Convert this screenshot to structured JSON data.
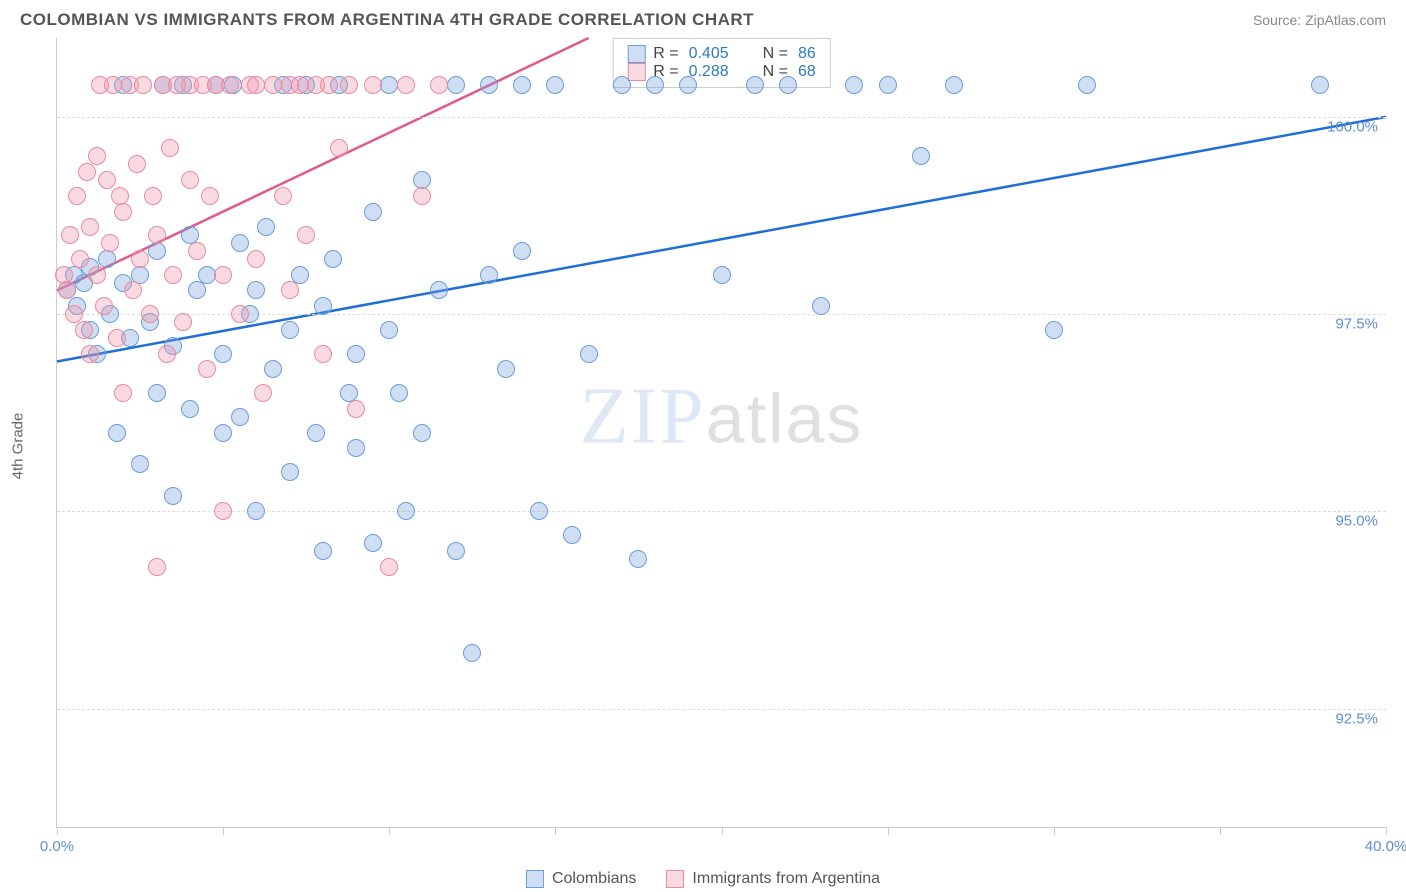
{
  "title": "COLOMBIAN VS IMMIGRANTS FROM ARGENTINA 4TH GRADE CORRELATION CHART",
  "source": "Source: ZipAtlas.com",
  "y_axis_label": "4th Grade",
  "watermark_a": "ZIP",
  "watermark_b": "atlas",
  "chart": {
    "type": "scatter",
    "xlim": [
      0,
      40
    ],
    "ylim": [
      91,
      101
    ],
    "x_ticks": [
      0,
      5,
      10,
      15,
      20,
      25,
      30,
      35,
      40
    ],
    "x_tick_labels": [
      "0.0%",
      "",
      "",
      "",
      "",
      "",
      "",
      "",
      "40.0%"
    ],
    "y_ticks": [
      92.5,
      95.0,
      97.5,
      100.0
    ],
    "y_tick_labels": [
      "92.5%",
      "95.0%",
      "97.5%",
      "100.0%"
    ],
    "grid_color": "#dddddd",
    "background_color": "#ffffff",
    "series": [
      {
        "name": "Colombians",
        "color_fill": "rgba(120,160,220,0.35)",
        "color_stroke": "#6a9edb",
        "trend_color": "#1f6fd4",
        "trend": {
          "x1": 0,
          "y1": 96.9,
          "x2": 40,
          "y2": 100.0
        },
        "R": "0.405",
        "N": "86",
        "points": [
          [
            0.3,
            97.8
          ],
          [
            0.5,
            98.0
          ],
          [
            0.6,
            97.6
          ],
          [
            0.8,
            97.9
          ],
          [
            1.0,
            98.1
          ],
          [
            1.0,
            97.3
          ],
          [
            1.2,
            97.0
          ],
          [
            1.5,
            98.2
          ],
          [
            1.6,
            97.5
          ],
          [
            1.8,
            96.0
          ],
          [
            2.0,
            97.9
          ],
          [
            2.0,
            100.4
          ],
          [
            2.2,
            97.2
          ],
          [
            2.5,
            98.0
          ],
          [
            2.5,
            95.6
          ],
          [
            2.8,
            97.4
          ],
          [
            3.0,
            98.3
          ],
          [
            3.0,
            96.5
          ],
          [
            3.2,
            100.4
          ],
          [
            3.5,
            97.1
          ],
          [
            3.5,
            95.2
          ],
          [
            3.8,
            100.4
          ],
          [
            4.0,
            98.5
          ],
          [
            4.0,
            96.3
          ],
          [
            4.2,
            97.8
          ],
          [
            4.5,
            98.0
          ],
          [
            4.8,
            100.4
          ],
          [
            5.0,
            97.0
          ],
          [
            5.0,
            96.0
          ],
          [
            5.3,
            100.4
          ],
          [
            5.5,
            98.4
          ],
          [
            5.5,
            96.2
          ],
          [
            5.8,
            97.5
          ],
          [
            6.0,
            97.8
          ],
          [
            6.0,
            95.0
          ],
          [
            6.3,
            98.6
          ],
          [
            6.5,
            96.8
          ],
          [
            6.8,
            100.4
          ],
          [
            7.0,
            97.3
          ],
          [
            7.0,
            95.5
          ],
          [
            7.3,
            98.0
          ],
          [
            7.5,
            100.4
          ],
          [
            7.8,
            96.0
          ],
          [
            8.0,
            97.6
          ],
          [
            8.0,
            94.5
          ],
          [
            8.3,
            98.2
          ],
          [
            8.5,
            100.4
          ],
          [
            8.8,
            96.5
          ],
          [
            9.0,
            97.0
          ],
          [
            9.0,
            95.8
          ],
          [
            9.5,
            98.8
          ],
          [
            9.5,
            94.6
          ],
          [
            10.0,
            100.4
          ],
          [
            10.0,
            97.3
          ],
          [
            10.3,
            96.5
          ],
          [
            10.5,
            95.0
          ],
          [
            11.0,
            99.2
          ],
          [
            11.0,
            96.0
          ],
          [
            11.5,
            97.8
          ],
          [
            12.0,
            100.4
          ],
          [
            12.0,
            94.5
          ],
          [
            12.5,
            93.2
          ],
          [
            13.0,
            98.0
          ],
          [
            13.0,
            100.4
          ],
          [
            13.5,
            96.8
          ],
          [
            14.0,
            100.4
          ],
          [
            14.0,
            98.3
          ],
          [
            14.5,
            95.0
          ],
          [
            15.0,
            100.4
          ],
          [
            15.5,
            94.7
          ],
          [
            16.0,
            97.0
          ],
          [
            17.0,
            100.4
          ],
          [
            17.5,
            94.4
          ],
          [
            18.0,
            100.4
          ],
          [
            19.0,
            100.4
          ],
          [
            20.0,
            98.0
          ],
          [
            21.0,
            100.4
          ],
          [
            22.0,
            100.4
          ],
          [
            23.0,
            97.6
          ],
          [
            24.0,
            100.4
          ],
          [
            25.0,
            100.4
          ],
          [
            26.0,
            99.5
          ],
          [
            27.0,
            100.4
          ],
          [
            30.0,
            97.3
          ],
          [
            31.0,
            100.4
          ],
          [
            38.0,
            100.4
          ]
        ]
      },
      {
        "name": "Immigrants from Argentina",
        "color_fill": "rgba(240,150,170,0.35)",
        "color_stroke": "#e88aa0",
        "trend_color": "#e05a8c",
        "trend": {
          "x1": 0,
          "y1": 97.8,
          "x2": 16,
          "y2": 101.0
        },
        "R": "0.288",
        "N": "68",
        "points": [
          [
            0.2,
            98.0
          ],
          [
            0.3,
            97.8
          ],
          [
            0.4,
            98.5
          ],
          [
            0.5,
            97.5
          ],
          [
            0.6,
            99.0
          ],
          [
            0.7,
            98.2
          ],
          [
            0.8,
            97.3
          ],
          [
            0.9,
            99.3
          ],
          [
            1.0,
            98.6
          ],
          [
            1.0,
            97.0
          ],
          [
            1.2,
            99.5
          ],
          [
            1.2,
            98.0
          ],
          [
            1.3,
            100.4
          ],
          [
            1.4,
            97.6
          ],
          [
            1.5,
            99.2
          ],
          [
            1.6,
            98.4
          ],
          [
            1.7,
            100.4
          ],
          [
            1.8,
            97.2
          ],
          [
            1.9,
            99.0
          ],
          [
            2.0,
            98.8
          ],
          [
            2.0,
            96.5
          ],
          [
            2.2,
            100.4
          ],
          [
            2.3,
            97.8
          ],
          [
            2.4,
            99.4
          ],
          [
            2.5,
            98.2
          ],
          [
            2.6,
            100.4
          ],
          [
            2.8,
            97.5
          ],
          [
            2.9,
            99.0
          ],
          [
            3.0,
            94.3
          ],
          [
            3.0,
            98.5
          ],
          [
            3.2,
            100.4
          ],
          [
            3.3,
            97.0
          ],
          [
            3.4,
            99.6
          ],
          [
            3.5,
            98.0
          ],
          [
            3.6,
            100.4
          ],
          [
            3.8,
            97.4
          ],
          [
            4.0,
            99.2
          ],
          [
            4.0,
            100.4
          ],
          [
            4.2,
            98.3
          ],
          [
            4.4,
            100.4
          ],
          [
            4.5,
            96.8
          ],
          [
            4.6,
            99.0
          ],
          [
            4.8,
            100.4
          ],
          [
            5.0,
            98.0
          ],
          [
            5.0,
            95.0
          ],
          [
            5.2,
            100.4
          ],
          [
            5.5,
            97.5
          ],
          [
            5.8,
            100.4
          ],
          [
            6.0,
            98.2
          ],
          [
            6.0,
            100.4
          ],
          [
            6.2,
            96.5
          ],
          [
            6.5,
            100.4
          ],
          [
            6.8,
            99.0
          ],
          [
            7.0,
            100.4
          ],
          [
            7.0,
            97.8
          ],
          [
            7.3,
            100.4
          ],
          [
            7.5,
            98.5
          ],
          [
            7.8,
            100.4
          ],
          [
            8.0,
            97.0
          ],
          [
            8.2,
            100.4
          ],
          [
            8.5,
            99.6
          ],
          [
            8.8,
            100.4
          ],
          [
            9.0,
            96.3
          ],
          [
            9.5,
            100.4
          ],
          [
            10.0,
            94.3
          ],
          [
            10.5,
            100.4
          ],
          [
            11.0,
            99.0
          ],
          [
            11.5,
            100.4
          ]
        ]
      }
    ]
  },
  "bottom_legend": [
    {
      "swatch": "blue",
      "label": "Colombians"
    },
    {
      "swatch": "pink",
      "label": "Immigrants from Argentina"
    }
  ]
}
